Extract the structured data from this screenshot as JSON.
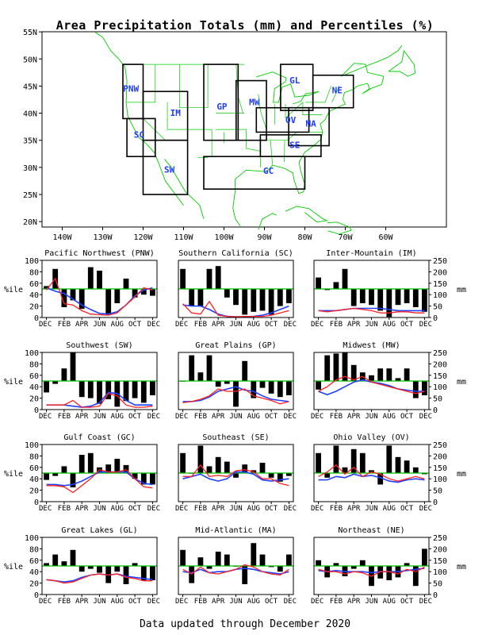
{
  "title": "Area Precipitation Totals (mm) and Percentiles (%)",
  "footer": "Data updated through December 2020",
  "colors": {
    "bars": "#000000",
    "line_50": "#00c000",
    "precip_line": "#ff2020",
    "normal_line": "#2040ff",
    "map_lines": "#00cc00",
    "region_labels": "#1e3cff"
  },
  "map": {
    "lat_labels": [
      "55N",
      "50N",
      "45N",
      "40N",
      "35N",
      "30N",
      "25N",
      "20N"
    ],
    "lon_labels": [
      "140W",
      "130W",
      "120W",
      "110W",
      "100W",
      "90W",
      "80W",
      "70W",
      "60W"
    ],
    "regions": [
      "PNW",
      "SC",
      "IM",
      "SW",
      "GP",
      "MW",
      "GL",
      "OV",
      "SE",
      "GC",
      "NE",
      "MA"
    ]
  },
  "axes": {
    "pct_label": "%ile",
    "mm_label": "mm",
    "pct_ticks": [
      "0",
      "20",
      "40",
      "60",
      "80",
      "100"
    ],
    "mm_ticks": [
      "0",
      "50",
      "100",
      "150",
      "200",
      "250"
    ],
    "months": [
      "DEC",
      "FEB",
      "APR",
      "JUN",
      "AUG",
      "OCT",
      "DEC"
    ]
  },
  "chart_data": [
    {
      "type": "bar",
      "title": "Pacific Northwest (PNW)",
      "percentile": [
        55,
        85,
        18,
        30,
        15,
        88,
        82,
        5,
        25,
        68,
        35,
        40,
        38
      ],
      "precip_mm": [
        120,
        170,
        60,
        55,
        30,
        15,
        12,
        10,
        20,
        55,
        90,
        130,
        120
      ],
      "normal_mm": [
        130,
        115,
        105,
        80,
        55,
        35,
        18,
        15,
        25,
        55,
        95,
        120,
        130
      ]
    },
    {
      "type": "bar",
      "title": "Southern California (SC)",
      "percentile": [
        85,
        20,
        20,
        85,
        90,
        35,
        22,
        5,
        10,
        12,
        5,
        20,
        25
      ],
      "precip_mm": [
        60,
        20,
        15,
        70,
        10,
        5,
        3,
        5,
        5,
        5,
        10,
        20,
        30
      ],
      "normal_mm": [
        55,
        50,
        50,
        35,
        15,
        5,
        3,
        3,
        5,
        10,
        20,
        35,
        50
      ]
    },
    {
      "type": "bar",
      "title": "Inter-Mountain (IM)",
      "percentile": [
        70,
        48,
        62,
        85,
        20,
        25,
        22,
        12,
        1,
        22,
        25,
        18,
        10
      ],
      "precip_mm": [
        30,
        25,
        30,
        35,
        40,
        35,
        30,
        20,
        20,
        25,
        25,
        20,
        20
      ],
      "normal_mm": [
        30,
        30,
        30,
        35,
        40,
        40,
        40,
        40,
        35,
        30,
        30,
        30,
        30
      ]
    },
    {
      "type": "bar",
      "title": "Southwest (SW)",
      "percentile": [
        30,
        45,
        72,
        100,
        22,
        20,
        10,
        18,
        5,
        15,
        20,
        12,
        25
      ],
      "precip_mm": [
        20,
        20,
        20,
        40,
        10,
        10,
        15,
        70,
        60,
        20,
        10,
        10,
        15
      ],
      "normal_mm": [
        20,
        20,
        20,
        15,
        10,
        15,
        30,
        75,
        70,
        40,
        20,
        20,
        20
      ]
    },
    {
      "type": "bar",
      "title": "Great Plains (GP)",
      "percentile": [
        50,
        95,
        65,
        95,
        40,
        45,
        5,
        85,
        20,
        38,
        28,
        22,
        25
      ],
      "precip_mm": [
        30,
        35,
        45,
        60,
        90,
        80,
        80,
        90,
        60,
        50,
        40,
        25,
        35
      ],
      "normal_mm": [
        35,
        35,
        40,
        55,
        80,
        90,
        100,
        85,
        80,
        60,
        45,
        40,
        35
      ]
    },
    {
      "type": "bar",
      "title": "Midwest (MW)",
      "percentile": [
        35,
        95,
        98,
        100,
        78,
        65,
        60,
        72,
        72,
        55,
        72,
        20,
        25
      ],
      "precip_mm": [
        80,
        100,
        130,
        145,
        130,
        145,
        120,
        110,
        100,
        90,
        80,
        70,
        80
      ],
      "normal_mm": [
        80,
        65,
        80,
        100,
        120,
        130,
        120,
        115,
        105,
        90,
        85,
        80,
        80
      ]
    },
    {
      "type": "bar",
      "title": "Gulf Coast (GC)",
      "percentile": [
        38,
        45,
        62,
        25,
        82,
        85,
        60,
        65,
        75,
        64,
        40,
        30,
        30
      ],
      "precip_mm": [
        70,
        70,
        65,
        40,
        70,
        100,
        140,
        130,
        130,
        140,
        100,
        65,
        60
      ],
      "normal_mm": [
        75,
        75,
        70,
        75,
        90,
        110,
        130,
        130,
        130,
        130,
        100,
        80,
        75
      ]
    },
    {
      "type": "bar",
      "title": "Southeast (SE)",
      "percentile": [
        85,
        50,
        98,
        62,
        78,
        70,
        42,
        65,
        55,
        68,
        42,
        35,
        45
      ],
      "precip_mm": [
        110,
        110,
        160,
        110,
        115,
        110,
        135,
        140,
        130,
        100,
        100,
        80,
        70
      ],
      "normal_mm": [
        100,
        110,
        120,
        100,
        90,
        100,
        130,
        130,
        120,
        95,
        90,
        95,
        100
      ]
    },
    {
      "type": "bar",
      "title": "Ohio Valley (OV)",
      "percentile": [
        85,
        42,
        98,
        60,
        92,
        85,
        55,
        30,
        98,
        78,
        72,
        60,
        48
      ],
      "precip_mm": [
        110,
        130,
        160,
        120,
        150,
        110,
        130,
        120,
        100,
        90,
        100,
        110,
        100
      ],
      "normal_mm": [
        95,
        95,
        110,
        105,
        120,
        110,
        115,
        105,
        90,
        85,
        95,
        100,
        95
      ]
    },
    {
      "type": "bar",
      "title": "Great Lakes (GL)",
      "percentile": [
        55,
        70,
        58,
        78,
        40,
        45,
        38,
        20,
        40,
        18,
        55,
        25,
        25
      ],
      "precip_mm": [
        65,
        60,
        50,
        55,
        70,
        85,
        90,
        85,
        90,
        75,
        70,
        60,
        60
      ],
      "normal_mm": [
        65,
        60,
        55,
        60,
        75,
        85,
        90,
        85,
        90,
        80,
        75,
        70,
        65
      ]
    },
    {
      "type": "bar",
      "title": "Mid-Atlantic (MA)",
      "percentile": [
        78,
        20,
        65,
        45,
        75,
        70,
        50,
        18,
        90,
        70,
        48,
        40,
        70
      ],
      "precip_mm": [
        110,
        90,
        120,
        95,
        90,
        100,
        110,
        130,
        120,
        100,
        90,
        85,
        110
      ],
      "normal_mm": [
        100,
        95,
        110,
        95,
        100,
        100,
        110,
        115,
        110,
        100,
        95,
        90,
        100
      ]
    },
    {
      "type": "bar",
      "title": "Northeast (NE)",
      "percentile": [
        60,
        30,
        55,
        32,
        45,
        60,
        15,
        28,
        25,
        30,
        55,
        15,
        80
      ],
      "precip_mm": [
        110,
        100,
        100,
        90,
        100,
        95,
        80,
        100,
        100,
        90,
        110,
        100,
        120
      ],
      "normal_mm": [
        105,
        100,
        105,
        100,
        100,
        100,
        95,
        100,
        100,
        100,
        105,
        110,
        115
      ]
    }
  ]
}
